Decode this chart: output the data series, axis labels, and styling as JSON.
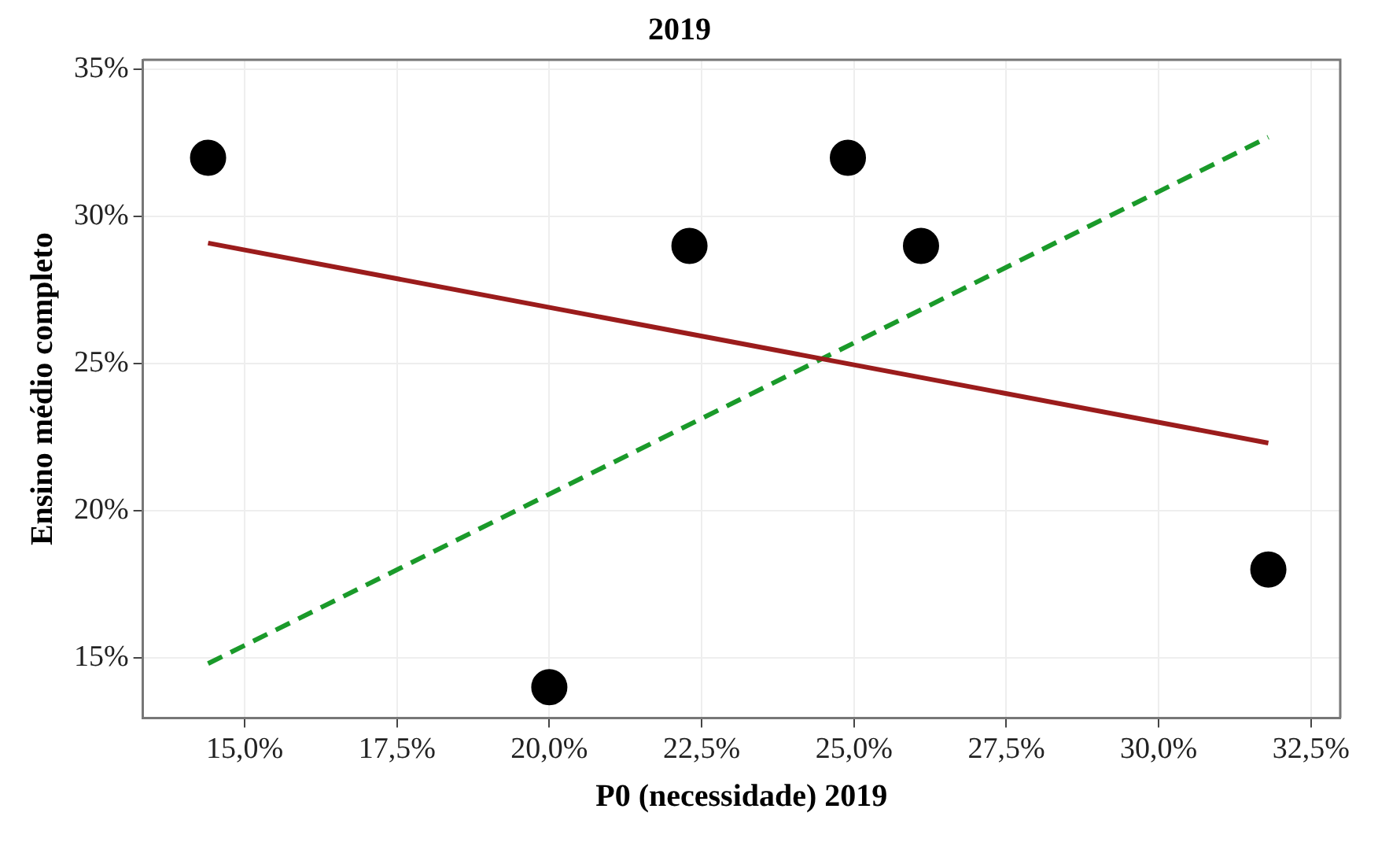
{
  "chart_data": {
    "type": "scatter",
    "title": "2019",
    "xlabel": "P0 (necessidade) 2019",
    "ylabel": "Ensino médio completo",
    "xlim": [
      13.33,
      32.98
    ],
    "ylim": [
      12.95,
      35.33
    ],
    "xticks": [
      {
        "value": 15,
        "label": "15,0%"
      },
      {
        "value": 17.5,
        "label": "17,5%"
      },
      {
        "value": 20,
        "label": "20,0%"
      },
      {
        "value": 22.5,
        "label": "22,5%"
      },
      {
        "value": 25,
        "label": "25,0%"
      },
      {
        "value": 27.5,
        "label": "27,5%"
      },
      {
        "value": 30,
        "label": "30,0%"
      },
      {
        "value": 32.5,
        "label": "32,5%"
      }
    ],
    "yticks": [
      {
        "value": 15,
        "label": "15%"
      },
      {
        "value": 20,
        "label": "20%"
      },
      {
        "value": 25,
        "label": "25%"
      },
      {
        "value": 30,
        "label": "30%"
      },
      {
        "value": 35,
        "label": "35%"
      }
    ],
    "grid": true,
    "legend": false,
    "series": [
      {
        "type": "scatter",
        "color": "#000000",
        "marker": "circle",
        "x": [
          14.4,
          20.0,
          22.3,
          24.9,
          26.1,
          31.8
        ],
        "values": [
          32,
          14,
          29,
          32,
          29,
          18
        ]
      },
      {
        "type": "line",
        "color": "#9b1c1c",
        "marker": "none",
        "line_style": "solid",
        "x": [
          14.4,
          31.8
        ],
        "values": [
          29.1,
          22.3
        ]
      },
      {
        "type": "line",
        "color": "#1a9a2a",
        "marker": "none",
        "line_style": "dashed",
        "x": [
          14.4,
          31.8
        ],
        "values": [
          14.8,
          32.7
        ]
      }
    ]
  }
}
